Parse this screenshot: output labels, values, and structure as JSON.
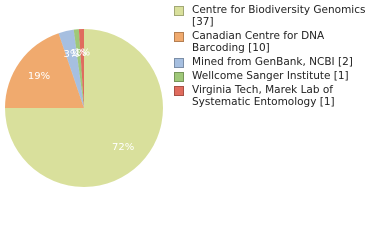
{
  "chart_data": {
    "type": "pie",
    "categories": [
      "Centre for Biodiversity Genomics [37]",
      "Canadian Centre for DNA Barcoding [10]",
      "Mined from GenBank, NCBI [2]",
      "Wellcome Sanger Institute [1]",
      "Virginia Tech, Marek Lab of Systematic Entomology [1]"
    ],
    "values": [
      72,
      19,
      3,
      1,
      1
    ],
    "colors": [
      "#d9e09c",
      "#f0aa6e",
      "#a6bfe0",
      "#9fc879",
      "#e06c5e"
    ]
  }
}
